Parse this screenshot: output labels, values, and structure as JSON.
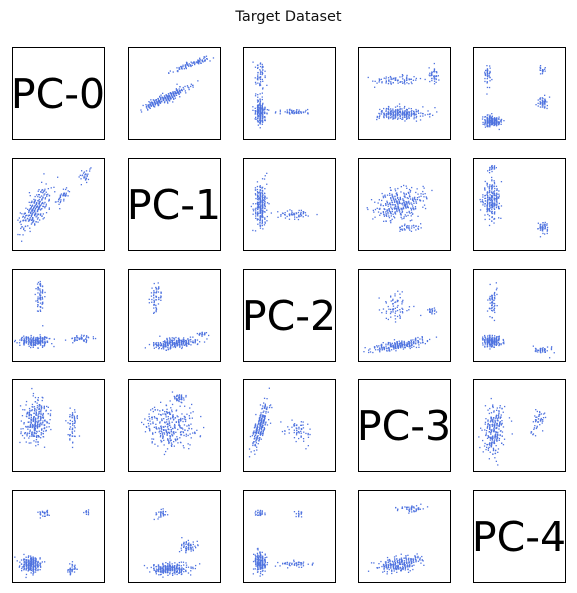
{
  "chart_data": {
    "type": "scatter",
    "title": "Target Dataset",
    "layout": "pairplot-grid",
    "rows": 5,
    "cols": 5,
    "components": [
      "PC-0",
      "PC-1",
      "PC-2",
      "PC-3",
      "PC-4"
    ],
    "diagonal": "component label",
    "point_color": "#4f73df",
    "axes_ticks": "hidden",
    "grid": false,
    "panels": [
      {
        "row": 0,
        "col": 1,
        "x": "PC-1",
        "y": "PC-0",
        "clusters": [
          [
            0.4,
            0.55,
            0.3,
            0.05,
            -0.45,
            260
          ],
          [
            0.62,
            0.2,
            0.2,
            0.03,
            -0.4,
            60
          ],
          [
            0.78,
            0.15,
            0.12,
            0.03,
            -0.35,
            30
          ]
        ]
      },
      {
        "row": 0,
        "col": 2,
        "x": "PC-2",
        "y": "PC-0",
        "clusters": [
          [
            0.18,
            0.7,
            0.06,
            0.14,
            0,
            220
          ],
          [
            0.55,
            0.7,
            0.18,
            0.03,
            0,
            60
          ],
          [
            0.18,
            0.3,
            0.06,
            0.18,
            0,
            60
          ]
        ]
      },
      {
        "row": 0,
        "col": 3,
        "x": "PC-3",
        "y": "PC-0",
        "clusters": [
          [
            0.45,
            0.72,
            0.3,
            0.07,
            0,
            260
          ],
          [
            0.4,
            0.35,
            0.25,
            0.05,
            0,
            80
          ],
          [
            0.82,
            0.3,
            0.06,
            0.1,
            0,
            40
          ]
        ]
      },
      {
        "row": 0,
        "col": 4,
        "x": "PC-4",
        "y": "PC-0",
        "clusters": [
          [
            0.2,
            0.8,
            0.1,
            0.06,
            0,
            220
          ],
          [
            0.75,
            0.6,
            0.06,
            0.06,
            0,
            50
          ],
          [
            0.15,
            0.3,
            0.04,
            0.12,
            0,
            40
          ],
          [
            0.75,
            0.25,
            0.05,
            0.05,
            0,
            20
          ]
        ]
      },
      {
        "row": 1,
        "col": 0,
        "x": "PC-0",
        "y": "PC-1",
        "clusters": [
          [
            0.25,
            0.55,
            0.12,
            0.3,
            0.55,
            260
          ],
          [
            0.55,
            0.4,
            0.05,
            0.12,
            0.4,
            40
          ],
          [
            0.78,
            0.2,
            0.05,
            0.1,
            0.4,
            30
          ]
        ]
      },
      {
        "row": 1,
        "col": 2,
        "x": "PC-2",
        "y": "PC-1",
        "clusters": [
          [
            0.18,
            0.5,
            0.07,
            0.25,
            0,
            240
          ],
          [
            0.55,
            0.6,
            0.2,
            0.05,
            0,
            60
          ]
        ]
      },
      {
        "row": 1,
        "col": 3,
        "x": "PC-3",
        "y": "PC-1",
        "clusters": [
          [
            0.45,
            0.5,
            0.3,
            0.18,
            -0.3,
            320
          ],
          [
            0.55,
            0.75,
            0.15,
            0.05,
            0,
            40
          ]
        ]
      },
      {
        "row": 1,
        "col": 4,
        "x": "PC-4",
        "y": "PC-1",
        "clusters": [
          [
            0.2,
            0.45,
            0.1,
            0.22,
            0,
            240
          ],
          [
            0.75,
            0.75,
            0.06,
            0.07,
            0,
            50
          ],
          [
            0.2,
            0.1,
            0.05,
            0.04,
            0,
            20
          ]
        ]
      },
      {
        "row": 2,
        "col": 0,
        "x": "PC-0",
        "y": "PC-2",
        "clusters": [
          [
            0.25,
            0.78,
            0.18,
            0.06,
            0,
            240
          ],
          [
            0.75,
            0.75,
            0.12,
            0.04,
            0,
            50
          ],
          [
            0.3,
            0.3,
            0.05,
            0.18,
            0,
            70
          ]
        ]
      },
      {
        "row": 2,
        "col": 1,
        "x": "PC-1",
        "y": "PC-2",
        "clusters": [
          [
            0.5,
            0.8,
            0.28,
            0.06,
            -0.1,
            260
          ],
          [
            0.3,
            0.3,
            0.07,
            0.18,
            0,
            60
          ],
          [
            0.8,
            0.7,
            0.06,
            0.03,
            0,
            20
          ]
        ]
      },
      {
        "row": 2,
        "col": 3,
        "x": "PC-3",
        "y": "PC-2",
        "clusters": [
          [
            0.45,
            0.82,
            0.32,
            0.05,
            -0.15,
            240
          ],
          [
            0.4,
            0.4,
            0.18,
            0.18,
            0,
            70
          ],
          [
            0.8,
            0.45,
            0.04,
            0.06,
            0,
            20
          ]
        ]
      },
      {
        "row": 2,
        "col": 4,
        "x": "PC-4",
        "y": "PC-2",
        "clusters": [
          [
            0.2,
            0.78,
            0.1,
            0.06,
            0,
            230
          ],
          [
            0.2,
            0.35,
            0.05,
            0.18,
            0,
            60
          ],
          [
            0.75,
            0.88,
            0.1,
            0.04,
            0,
            40
          ]
        ]
      },
      {
        "row": 3,
        "col": 0,
        "x": "PC-0",
        "y": "PC-3",
        "clusters": [
          [
            0.25,
            0.45,
            0.14,
            0.28,
            0.1,
            300
          ],
          [
            0.65,
            0.5,
            0.06,
            0.18,
            0,
            60
          ]
        ]
      },
      {
        "row": 3,
        "col": 1,
        "x": "PC-1",
        "y": "PC-3",
        "clusters": [
          [
            0.45,
            0.5,
            0.28,
            0.25,
            -0.2,
            320
          ],
          [
            0.55,
            0.2,
            0.1,
            0.06,
            0,
            40
          ]
        ]
      },
      {
        "row": 3,
        "col": 2,
        "x": "PC-2",
        "y": "PC-3",
        "clusters": [
          [
            0.18,
            0.5,
            0.07,
            0.28,
            0.25,
            240
          ],
          [
            0.6,
            0.55,
            0.15,
            0.15,
            0,
            60
          ]
        ]
      },
      {
        "row": 3,
        "col": 4,
        "x": "PC-4",
        "y": "PC-3",
        "clusters": [
          [
            0.22,
            0.55,
            0.12,
            0.28,
            0.15,
            260
          ],
          [
            0.7,
            0.45,
            0.06,
            0.15,
            0.2,
            50
          ]
        ]
      },
      {
        "row": 4,
        "col": 0,
        "x": "PC-0",
        "y": "PC-4",
        "clusters": [
          [
            0.2,
            0.8,
            0.12,
            0.1,
            0,
            260
          ],
          [
            0.65,
            0.85,
            0.06,
            0.06,
            0,
            40
          ],
          [
            0.35,
            0.25,
            0.06,
            0.05,
            0,
            30
          ],
          [
            0.8,
            0.25,
            0.03,
            0.04,
            0,
            10
          ]
        ]
      },
      {
        "row": 4,
        "col": 1,
        "x": "PC-1",
        "y": "PC-4",
        "clusters": [
          [
            0.45,
            0.85,
            0.22,
            0.07,
            0,
            260
          ],
          [
            0.65,
            0.6,
            0.08,
            0.07,
            0,
            60
          ],
          [
            0.35,
            0.25,
            0.08,
            0.05,
            0,
            30
          ]
        ]
      },
      {
        "row": 4,
        "col": 2,
        "x": "PC-2",
        "y": "PC-4",
        "clusters": [
          [
            0.18,
            0.78,
            0.07,
            0.12,
            0,
            220
          ],
          [
            0.55,
            0.8,
            0.18,
            0.04,
            0,
            50
          ],
          [
            0.18,
            0.25,
            0.05,
            0.05,
            0,
            30
          ],
          [
            0.6,
            0.25,
            0.05,
            0.04,
            0,
            15
          ]
        ]
      },
      {
        "row": 4,
        "col": 3,
        "x": "PC-3",
        "y": "PC-4",
        "clusters": [
          [
            0.45,
            0.8,
            0.3,
            0.08,
            -0.15,
            260
          ],
          [
            0.55,
            0.2,
            0.15,
            0.04,
            0,
            50
          ]
        ]
      }
    ]
  }
}
